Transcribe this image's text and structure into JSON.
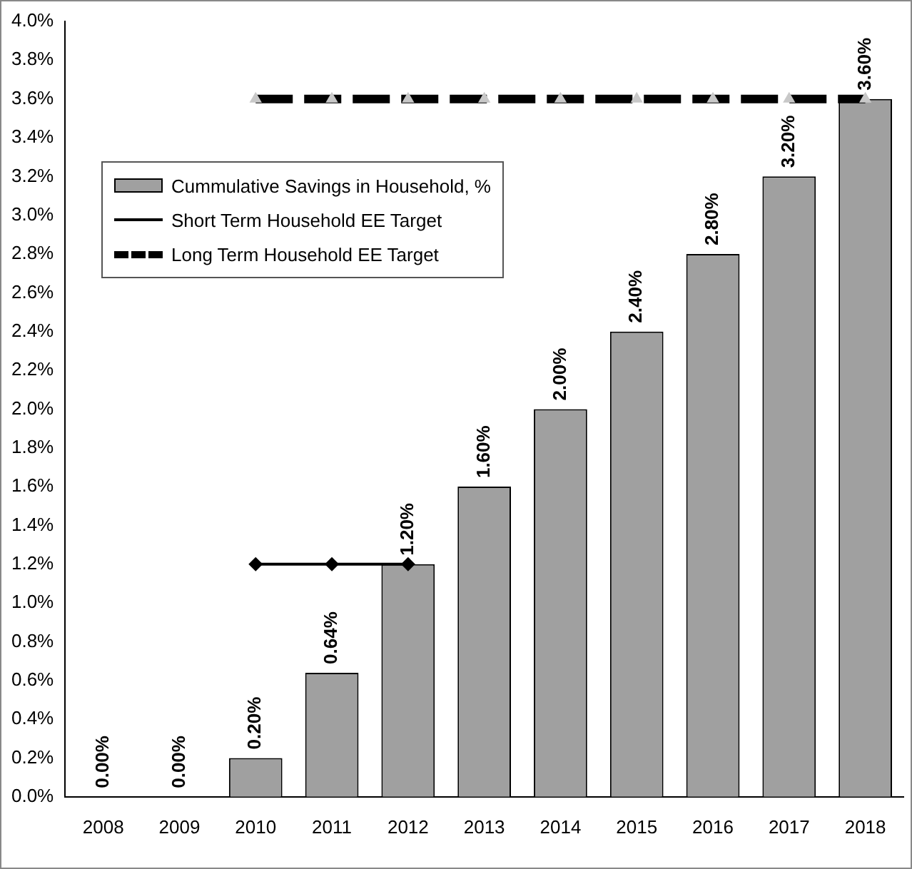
{
  "chart_data": {
    "type": "bar",
    "categories": [
      "2008",
      "2009",
      "2010",
      "2011",
      "2012",
      "2013",
      "2014",
      "2015",
      "2016",
      "2017",
      "2018"
    ],
    "series": [
      {
        "name": "Cummulative Savings in Household, %",
        "color": "#a0a0a0",
        "values": [
          0,
          0,
          0.2,
          0.64,
          1.2,
          1.6,
          2.0,
          2.4,
          2.8,
          3.2,
          3.6
        ],
        "value_labels": [
          "0.00%",
          "0.00%",
          "0.20%",
          "0.64%",
          "1.20%",
          "1.60%",
          "2.00%",
          "2.40%",
          "2.80%",
          "3.20%",
          "3.60%"
        ]
      },
      {
        "name": "Short Term Household EE Target",
        "type": "line",
        "color": "#000000",
        "marker": "diamond",
        "line_style": "solid",
        "values": [
          null,
          null,
          1.2,
          1.2,
          1.2,
          null,
          null,
          null,
          null,
          null,
          null
        ]
      },
      {
        "name": "Long Term Household EE Target",
        "type": "line",
        "color": "#000000",
        "marker": "triangle",
        "line_style": "dashed",
        "values": [
          null,
          null,
          3.6,
          3.6,
          3.6,
          3.6,
          3.6,
          3.6,
          3.6,
          3.6,
          3.6
        ]
      }
    ],
    "ylim": [
      0,
      4
    ],
    "yticks": [
      {
        "value": 0,
        "label": "0.0%"
      },
      {
        "value": 0.2,
        "label": "0.2%"
      },
      {
        "value": 0.4,
        "label": "0.4%"
      },
      {
        "value": 0.6,
        "label": "0.6%"
      },
      {
        "value": 0.8,
        "label": "0.8%"
      },
      {
        "value": 1.0,
        "label": "1.0%"
      },
      {
        "value": 1.2,
        "label": "1.2%"
      },
      {
        "value": 1.4,
        "label": "1.4%"
      },
      {
        "value": 1.6,
        "label": "1.6%"
      },
      {
        "value": 1.8,
        "label": "1.8%"
      },
      {
        "value": 2.0,
        "label": "2.0%"
      },
      {
        "value": 2.2,
        "label": "2.2%"
      },
      {
        "value": 2.4,
        "label": "2.4%"
      },
      {
        "value": 2.6,
        "label": "2.6%"
      },
      {
        "value": 2.8,
        "label": "2.8%"
      },
      {
        "value": 3.0,
        "label": "3.0%"
      },
      {
        "value": 3.2,
        "label": "3.2%"
      },
      {
        "value": 3.4,
        "label": "3.4%"
      },
      {
        "value": 3.6,
        "label": "3.6%"
      },
      {
        "value": 3.8,
        "label": "3.8%"
      },
      {
        "value": 4.0,
        "label": "4.0%"
      }
    ],
    "grid": false,
    "legend": "top left"
  }
}
